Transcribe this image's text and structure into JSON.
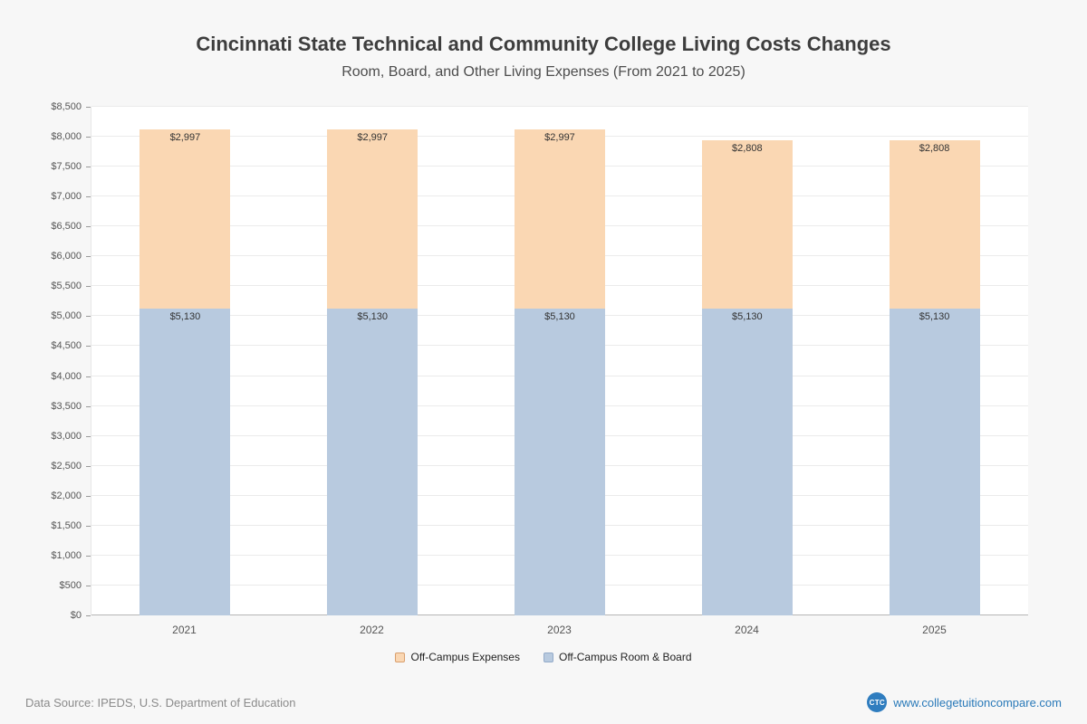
{
  "page": {
    "title": "Cincinnati State Technical and Community College Living Costs Changes",
    "subtitle": "Room, Board, and Other Living Expenses (From 2021 to 2025)",
    "footer": {
      "source": "Data Source: IPEDS, U.S. Department of Education",
      "site": "www.collegetuitioncompare.com",
      "logo": "CTC",
      "link_color": "#2a7ab9"
    }
  },
  "chart_data": {
    "type": "bar",
    "stacked": true,
    "title": "Cincinnati State Technical and Community College Living Costs Changes",
    "subtitle": "Room, Board, and Other Living Expenses (From 2021 to 2025)",
    "categories": [
      "2021",
      "2022",
      "2023",
      "2024",
      "2025"
    ],
    "series": [
      {
        "name": "Off-Campus Room & Board",
        "color": "#b8cadf",
        "border_color": "#93abc9",
        "values": [
          5130,
          5130,
          5130,
          5130,
          5130
        ]
      },
      {
        "name": "Off-Campus Expenses",
        "color": "#fad7b3",
        "border_color": "#d99f6d",
        "values": [
          2997,
          2997,
          2997,
          2808,
          2808
        ]
      }
    ],
    "totals": [
      8127,
      8127,
      8127,
      7938,
      7938
    ],
    "xlabel": "",
    "ylabel": "",
    "ylim": [
      0,
      8500
    ],
    "ytick_step": 500,
    "grid": true,
    "value_labels": true,
    "value_label_prefix": "$",
    "legend_order": [
      "Off-Campus Expenses",
      "Off-Campus Room & Board"
    ],
    "legend_position": "bottom"
  }
}
